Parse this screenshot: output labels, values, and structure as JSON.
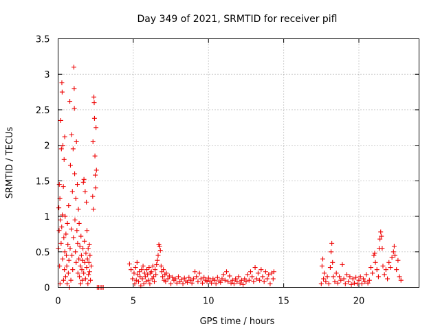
{
  "chart_data": {
    "type": "scatter",
    "title": "Day 349 of 2021, SRMTID for receiver pifl",
    "xlabel": "GPS time / hours",
    "ylabel": "SRMTID / TECUs",
    "xlim": [
      0,
      24
    ],
    "ylim": [
      0,
      3.5
    ],
    "x_ticks": [
      0,
      5,
      10,
      15,
      20
    ],
    "x_tick_labels": [
      "0",
      "5",
      "10",
      "15",
      "20"
    ],
    "y_ticks": [
      0,
      0.5,
      1,
      1.5,
      2,
      2.5,
      3,
      3.5
    ],
    "y_tick_labels": [
      "0",
      "0.5",
      "1",
      "1.5",
      "2",
      "2.5",
      "3",
      "3.5"
    ],
    "grid": true,
    "marker": "+",
    "series": [
      {
        "name": "SRMTID",
        "color": "#ee0000",
        "points": [
          [
            0.02,
            0.55
          ],
          [
            0.05,
            1.12
          ],
          [
            0.07,
            0.8
          ],
          [
            0.08,
            1.45
          ],
          [
            0.1,
            0.3
          ],
          [
            0.12,
            1.25
          ],
          [
            0.13,
            0.05
          ],
          [
            0.15,
            0.95
          ],
          [
            0.18,
            2.35
          ],
          [
            0.2,
            0.62
          ],
          [
            0.22,
            1.95
          ],
          [
            0.24,
            0.85
          ],
          [
            0.25,
            2.88
          ],
          [
            0.27,
            2.75
          ],
          [
            0.28,
            1.02
          ],
          [
            0.3,
            0.4
          ],
          [
            0.32,
            2.0
          ],
          [
            0.35,
            1.42
          ],
          [
            0.36,
            0.1
          ],
          [
            0.38,
            0.7
          ],
          [
            0.4,
            1.8
          ],
          [
            0.42,
            0.25
          ],
          [
            0.44,
            2.12
          ],
          [
            0.45,
            0.5
          ],
          [
            0.47,
            1.0
          ],
          [
            0.5,
            0.15
          ],
          [
            0.52,
            0.75
          ],
          [
            0.55,
            0.45
          ],
          [
            0.58,
            0.3
          ],
          [
            0.6,
            0.05
          ],
          [
            0.62,
            0.9
          ],
          [
            0.65,
            0.6
          ],
          [
            0.68,
            0.2
          ],
          [
            0.7,
            1.15
          ],
          [
            0.72,
            0.38
          ],
          [
            0.75,
            0.0
          ],
          [
            0.78,
            2.62
          ],
          [
            0.8,
            0.55
          ],
          [
            0.82,
            1.72
          ],
          [
            0.85,
            0.1
          ],
          [
            0.88,
            0.82
          ],
          [
            0.9,
            2.15
          ],
          [
            0.92,
            0.45
          ],
          [
            0.95,
            1.35
          ],
          [
            0.97,
            0.25
          ],
          [
            1.0,
            1.95
          ],
          [
            1.02,
            0.7
          ],
          [
            1.05,
            3.1
          ],
          [
            1.07,
            2.8
          ],
          [
            1.08,
            2.52
          ],
          [
            1.1,
            1.6
          ],
          [
            1.12,
            0.95
          ],
          [
            1.15,
            0.5
          ],
          [
            1.18,
            1.25
          ],
          [
            1.2,
            0.35
          ],
          [
            1.22,
            2.05
          ],
          [
            1.25,
            0.8
          ],
          [
            1.28,
            1.45
          ],
          [
            1.3,
            0.62
          ],
          [
            1.32,
            0.2
          ],
          [
            1.35,
            1.1
          ],
          [
            1.38,
            0.4
          ],
          [
            1.4,
            0.9
          ],
          [
            1.42,
            0.15
          ],
          [
            1.45,
            0.58
          ],
          [
            1.48,
            0.3
          ],
          [
            1.5,
            0.05
          ],
          [
            1.52,
            0.72
          ],
          [
            1.55,
            0.45
          ],
          [
            1.58,
            0.25
          ],
          [
            1.6,
            0.1
          ],
          [
            1.62,
            0.38
          ],
          [
            1.65,
            0.55
          ],
          [
            1.68,
            1.48
          ],
          [
            1.7,
            0.2
          ],
          [
            1.72,
            1.52
          ],
          [
            1.75,
            0.65
          ],
          [
            1.78,
            0.35
          ],
          [
            1.8,
            1.35
          ],
          [
            1.82,
            0.12
          ],
          [
            1.85,
            0.48
          ],
          [
            1.88,
            1.2
          ],
          [
            1.9,
            0.28
          ],
          [
            1.92,
            0.8
          ],
          [
            1.95,
            0.4
          ],
          [
            1.98,
            0.05
          ],
          [
            2.0,
            0.55
          ],
          [
            2.02,
            0.18
          ],
          [
            2.05,
            0.35
          ],
          [
            2.08,
            0.6
          ],
          [
            2.1,
            0.22
          ],
          [
            2.12,
            0.45
          ],
          [
            2.15,
            0.1
          ],
          [
            2.2,
            0.3
          ],
          [
            2.3,
            1.28
          ],
          [
            2.32,
            2.05
          ],
          [
            2.35,
            1.1
          ],
          [
            2.38,
            2.68
          ],
          [
            2.4,
            2.6
          ],
          [
            2.42,
            2.38
          ],
          [
            2.45,
            1.85
          ],
          [
            2.47,
            1.58
          ],
          [
            2.5,
            1.4
          ],
          [
            2.52,
            2.25
          ],
          [
            2.55,
            1.65
          ],
          [
            2.6,
            0.0
          ],
          [
            2.7,
            0.0
          ],
          [
            2.8,
            0.0
          ],
          [
            2.9,
            0.0
          ],
          [
            3.0,
            0.0
          ],
          [
            4.75,
            0.33
          ],
          [
            4.85,
            0.25
          ],
          [
            4.95,
            0.12
          ],
          [
            5.05,
            0.2
          ],
          [
            5.1,
            0.05
          ],
          [
            5.15,
            0.28
          ],
          [
            5.2,
            0.1
          ],
          [
            5.25,
            0.35
          ],
          [
            5.3,
            0.18
          ],
          [
            5.35,
            0.08
          ],
          [
            5.4,
            0.22
          ],
          [
            5.45,
            0.15
          ],
          [
            5.5,
            0.02
          ],
          [
            5.55,
            0.25
          ],
          [
            5.6,
            0.12
          ],
          [
            5.65,
            0.3
          ],
          [
            5.7,
            0.05
          ],
          [
            5.75,
            0.2
          ],
          [
            5.8,
            0.15
          ],
          [
            5.85,
            0.08
          ],
          [
            5.9,
            0.25
          ],
          [
            5.95,
            0.18
          ],
          [
            6.0,
            0.1
          ],
          [
            6.05,
            0.28
          ],
          [
            6.1,
            0.05
          ],
          [
            6.15,
            0.2
          ],
          [
            6.2,
            0.22
          ],
          [
            6.25,
            0.12
          ],
          [
            6.3,
            0.3
          ],
          [
            6.35,
            0.15
          ],
          [
            6.4,
            0.08
          ],
          [
            6.45,
            0.25
          ],
          [
            6.5,
            0.18
          ],
          [
            6.55,
            0.32
          ],
          [
            6.6,
            0.38
          ],
          [
            6.65,
            0.45
          ],
          [
            6.7,
            0.6
          ],
          [
            6.75,
            0.58
          ],
          [
            6.8,
            0.52
          ],
          [
            6.85,
            0.3
          ],
          [
            6.9,
            0.22
          ],
          [
            6.95,
            0.15
          ],
          [
            7.0,
            0.25
          ],
          [
            7.05,
            0.1
          ],
          [
            7.1,
            0.18
          ],
          [
            7.15,
            0.08
          ],
          [
            7.2,
            0.2
          ],
          [
            7.3,
            0.12
          ],
          [
            7.4,
            0.16
          ],
          [
            7.5,
            0.05
          ],
          [
            7.6,
            0.14
          ],
          [
            7.7,
            0.1
          ],
          [
            7.8,
            0.12
          ],
          [
            7.9,
            0.06
          ],
          [
            8.0,
            0.15
          ],
          [
            8.1,
            0.08
          ],
          [
            8.2,
            0.11
          ],
          [
            8.3,
            0.05
          ],
          [
            8.4,
            0.13
          ],
          [
            8.5,
            0.09
          ],
          [
            8.6,
            0.07
          ],
          [
            8.7,
            0.14
          ],
          [
            8.8,
            0.1
          ],
          [
            8.9,
            0.06
          ],
          [
            9.0,
            0.12
          ],
          [
            9.1,
            0.22
          ],
          [
            9.2,
            0.15
          ],
          [
            9.3,
            0.08
          ],
          [
            9.4,
            0.2
          ],
          [
            9.5,
            0.12
          ],
          [
            9.6,
            0.06
          ],
          [
            9.7,
            0.14
          ],
          [
            9.8,
            0.1
          ],
          [
            9.9,
            0.08
          ],
          [
            10.0,
            0.13
          ],
          [
            10.1,
            0.09
          ],
          [
            10.2,
            0.06
          ],
          [
            10.3,
            0.12
          ],
          [
            10.4,
            0.1
          ],
          [
            10.5,
            0.05
          ],
          [
            10.6,
            0.14
          ],
          [
            10.7,
            0.09
          ],
          [
            10.8,
            0.07
          ],
          [
            10.9,
            0.12
          ],
          [
            11.0,
            0.18
          ],
          [
            11.1,
            0.1
          ],
          [
            11.2,
            0.22
          ],
          [
            11.3,
            0.08
          ],
          [
            11.4,
            0.16
          ],
          [
            11.5,
            0.06
          ],
          [
            11.6,
            0.1
          ],
          [
            11.7,
            0.05
          ],
          [
            11.8,
            0.12
          ],
          [
            11.9,
            0.08
          ],
          [
            12.0,
            0.15
          ],
          [
            12.1,
            0.06
          ],
          [
            12.2,
            0.1
          ],
          [
            12.3,
            0.04
          ],
          [
            12.4,
            0.12
          ],
          [
            12.5,
            0.08
          ],
          [
            12.6,
            0.18
          ],
          [
            12.7,
            0.1
          ],
          [
            12.8,
            0.22
          ],
          [
            12.9,
            0.15
          ],
          [
            13.0,
            0.08
          ],
          [
            13.1,
            0.28
          ],
          [
            13.2,
            0.12
          ],
          [
            13.3,
            0.2
          ],
          [
            13.4,
            0.1
          ],
          [
            13.5,
            0.25
          ],
          [
            13.6,
            0.15
          ],
          [
            13.7,
            0.08
          ],
          [
            13.8,
            0.22
          ],
          [
            13.9,
            0.12
          ],
          [
            14.0,
            0.18
          ],
          [
            14.1,
            0.05
          ],
          [
            14.2,
            0.2
          ],
          [
            14.3,
            0.12
          ],
          [
            14.35,
            0.22
          ],
          [
            17.5,
            0.05
          ],
          [
            17.55,
            0.3
          ],
          [
            17.6,
            0.4
          ],
          [
            17.65,
            0.12
          ],
          [
            17.7,
            0.2
          ],
          [
            17.8,
            0.08
          ],
          [
            17.9,
            0.15
          ],
          [
            18.0,
            0.05
          ],
          [
            18.1,
            0.28
          ],
          [
            18.15,
            0.5
          ],
          [
            18.2,
            0.62
          ],
          [
            18.25,
            0.35
          ],
          [
            18.3,
            0.15
          ],
          [
            18.4,
            0.08
          ],
          [
            18.5,
            0.2
          ],
          [
            18.6,
            0.06
          ],
          [
            18.7,
            0.15
          ],
          [
            18.8,
            0.1
          ],
          [
            18.9,
            0.32
          ],
          [
            19.0,
            0.12
          ],
          [
            19.1,
            0.05
          ],
          [
            19.2,
            0.18
          ],
          [
            19.3,
            0.08
          ],
          [
            19.4,
            0.15
          ],
          [
            19.5,
            0.04
          ],
          [
            19.6,
            0.12
          ],
          [
            19.7,
            0.06
          ],
          [
            19.8,
            0.14
          ],
          [
            19.9,
            0.05
          ],
          [
            20.0,
            0.1
          ],
          [
            20.1,
            0.15
          ],
          [
            20.2,
            0.05
          ],
          [
            20.3,
            0.12
          ],
          [
            20.4,
            0.08
          ],
          [
            20.5,
            0.18
          ],
          [
            20.6,
            0.06
          ],
          [
            20.7,
            0.1
          ],
          [
            20.8,
            0.28
          ],
          [
            20.9,
            0.2
          ],
          [
            21.0,
            0.45
          ],
          [
            21.05,
            0.48
          ],
          [
            21.1,
            0.35
          ],
          [
            21.2,
            0.25
          ],
          [
            21.3,
            0.15
          ],
          [
            21.35,
            0.55
          ],
          [
            21.4,
            0.68
          ],
          [
            21.45,
            0.78
          ],
          [
            21.5,
            0.72
          ],
          [
            21.55,
            0.55
          ],
          [
            21.6,
            0.3
          ],
          [
            21.7,
            0.18
          ],
          [
            21.8,
            0.25
          ],
          [
            21.9,
            0.12
          ],
          [
            22.0,
            0.35
          ],
          [
            22.1,
            0.28
          ],
          [
            22.2,
            0.42
          ],
          [
            22.3,
            0.5
          ],
          [
            22.35,
            0.58
          ],
          [
            22.4,
            0.45
          ],
          [
            22.5,
            0.25
          ],
          [
            22.6,
            0.38
          ],
          [
            22.7,
            0.15
          ],
          [
            22.8,
            0.1
          ]
        ]
      }
    ]
  }
}
